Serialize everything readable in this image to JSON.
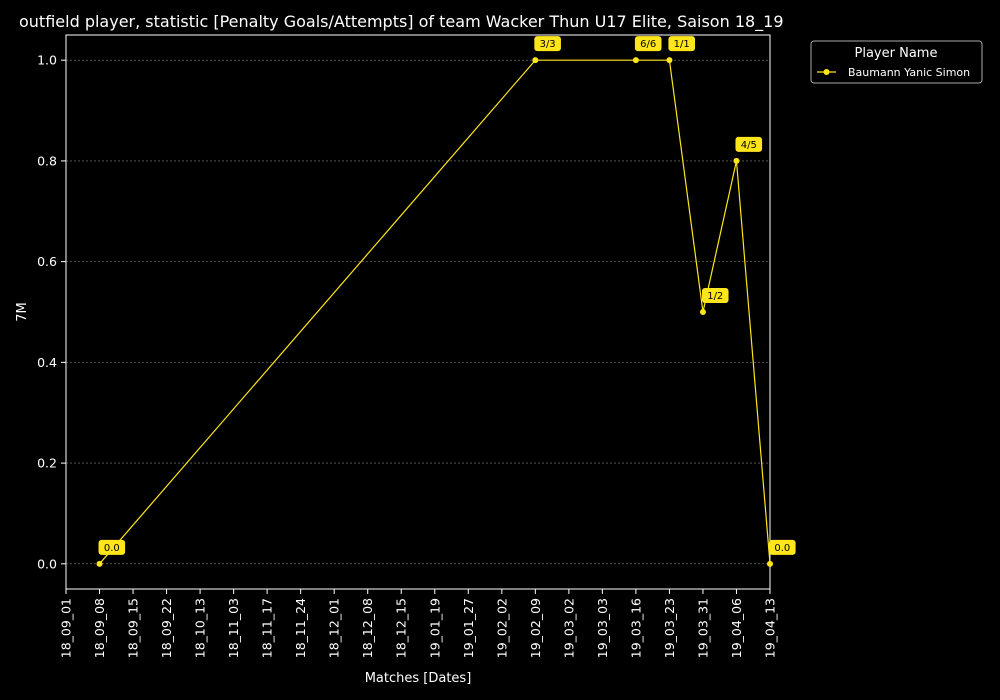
{
  "chart_data": {
    "type": "line",
    "title": "outfield player, statistic [Penalty Goals/Attempts] of team Wacker Thun U17 Elite, Saison 18_19",
    "xlabel": "Matches [Dates]",
    "ylabel": "7M",
    "categories": [
      "18_09_01",
      "18_09_08",
      "18_09_15",
      "18_09_22",
      "18_10_13",
      "18_11_03",
      "18_11_17",
      "18_11_24",
      "18_12_01",
      "18_12_08",
      "18_12_15",
      "19_01_19",
      "19_01_27",
      "19_02_02",
      "19_02_09",
      "19_03_02",
      "19_03_03",
      "19_03_16",
      "19_03_23",
      "19_03_31",
      "19_04_06",
      "19_04_13"
    ],
    "ylim": [
      -0.05,
      1.05
    ],
    "yticks": [
      0.0,
      0.2,
      0.4,
      0.6,
      0.8,
      1.0
    ],
    "ytick_labels": [
      "0.0",
      "0.2",
      "0.4",
      "0.6",
      "0.8",
      "1.0"
    ],
    "grid": "horizontal",
    "legend": {
      "title": "Player Name",
      "placement": "outside-top-right"
    },
    "series": [
      {
        "name": "Baumann Yanic Simon",
        "color": "#ffe61a",
        "points": [
          {
            "x": "18_09_08",
            "y": 0.0,
            "label": "0.0"
          },
          {
            "x": "19_02_09",
            "y": 1.0,
            "label": "3/3"
          },
          {
            "x": "19_03_16",
            "y": 1.0,
            "label": "6/6"
          },
          {
            "x": "19_03_23",
            "y": 1.0,
            "label": "1/1"
          },
          {
            "x": "19_03_31",
            "y": 0.5,
            "label": "1/2"
          },
          {
            "x": "19_04_06",
            "y": 0.8,
            "label": "4/5"
          },
          {
            "x": "19_04_13",
            "y": 0.0,
            "label": "0.0"
          }
        ]
      }
    ]
  }
}
